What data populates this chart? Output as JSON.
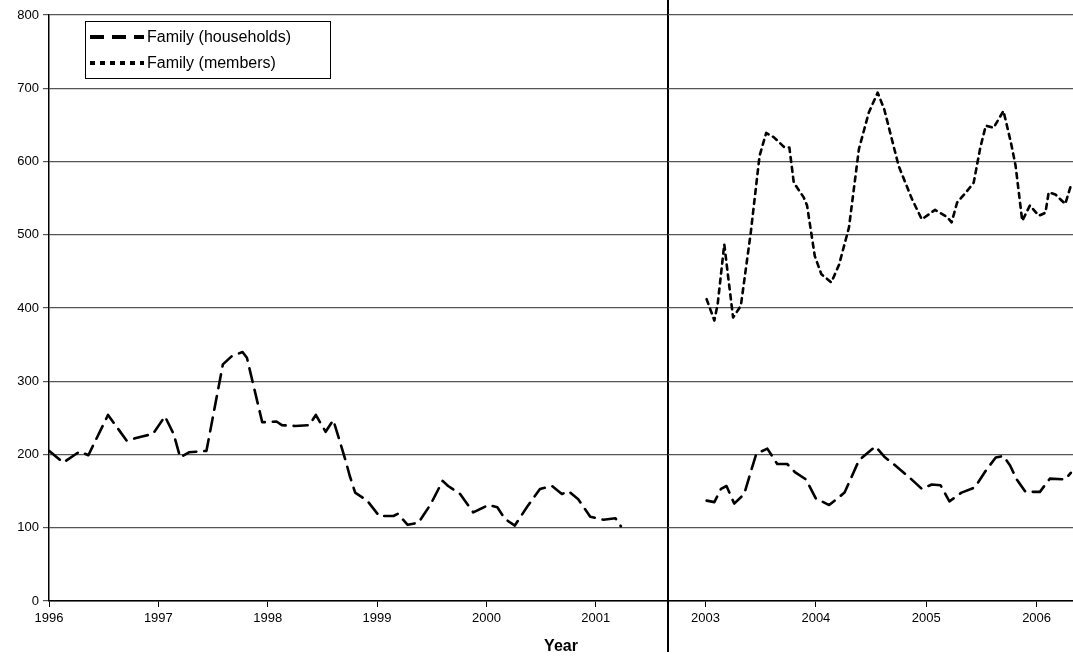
{
  "chart_data": [
    {
      "type": "line",
      "xlabel": "Year",
      "legend": "top left",
      "grid": "y",
      "marker": "none",
      "ref_lines": [
        {
          "axis": "x",
          "value": 2001.67,
          "color": "#000000"
        }
      ],
      "xlim": [
        1996,
        2001.67
      ],
      "xticks": [
        1996,
        1997,
        1998,
        1999,
        2000,
        2001
      ],
      "ylim": [
        0,
        800
      ],
      "yticks": [
        0,
        100,
        200,
        300,
        400,
        500,
        600,
        700,
        800
      ],
      "series": [
        {
          "name": "Family (households)",
          "color": "#000000",
          "line_style": "dashed",
          "x": [
            1996.0,
            1996.13,
            1996.28,
            1996.36,
            1996.54,
            1996.71,
            1996.86,
            1996.95,
            1997.06,
            1997.14,
            1997.2,
            1997.28,
            1997.44,
            1997.59,
            1997.67,
            1997.77,
            1997.81,
            1997.95,
            1998.08,
            1998.13,
            1998.25,
            1998.38,
            1998.44,
            1998.53,
            1998.6,
            1998.71,
            1998.75,
            1998.8,
            1998.91,
            1999.02,
            1999.15,
            1999.19,
            1999.28,
            1999.38,
            1999.49,
            1999.6,
            1999.65,
            1999.76,
            1999.88,
            2000.02,
            2000.1,
            2000.17,
            2000.26,
            2000.37,
            2000.49,
            2000.6,
            2000.69,
            2000.75,
            2000.84,
            2000.95,
            2001.07,
            2001.18,
            2001.23
          ],
          "values": [
            205,
            189,
            204,
            199,
            254,
            219,
            225,
            228,
            252,
            228,
            196,
            203,
            205,
            323,
            334,
            340,
            332,
            244,
            245,
            240,
            239,
            240,
            254,
            231,
            247,
            193,
            171,
            148,
            137,
            116,
            116,
            119,
            104,
            107,
            132,
            164,
            157,
            146,
            121,
            131,
            128,
            112,
            103,
            128,
            153,
            157,
            146,
            150,
            139,
            115,
            111,
            113,
            102
          ]
        }
      ]
    },
    {
      "type": "line",
      "grid": "y",
      "legend": "top left",
      "marker": "none",
      "tick_labels": "x",
      "xlim": [
        2002.66,
        2006.33
      ],
      "xticks": [
        2003,
        2004,
        2005,
        2006
      ],
      "ylim": [
        0,
        800
      ],
      "yticks": [
        0,
        100,
        200,
        300,
        400,
        500,
        600,
        700,
        800
      ],
      "series": [
        {
          "color": "#000000",
          "line_style": "dashed",
          "x": [
            2003.01,
            2003.08,
            2003.14,
            2003.19,
            2003.26,
            2003.35,
            2003.46,
            2003.56,
            2003.65,
            2003.74,
            2003.81,
            2003.91,
            2004.0,
            2004.12,
            2004.26,
            2004.39,
            2004.54,
            2004.62,
            2004.72,
            2004.86,
            2004.96,
            2005.05,
            2005.13,
            2005.21,
            2005.32,
            2005.44,
            2005.54,
            2005.63,
            2005.7,
            2005.76,
            2005.82,
            2005.9,
            2006.03,
            2006.12,
            2006.26,
            2006.31
          ],
          "values": [
            137,
            135,
            153,
            157,
            133,
            146,
            201,
            208,
            187,
            187,
            176,
            166,
            140,
            131,
            148,
            192,
            211,
            197,
            185,
            167,
            153,
            159,
            158,
            136,
            148,
            155,
            178,
            196,
            198,
            185,
            166,
            149,
            149,
            167,
            166,
            175
          ]
        },
        {
          "name": "Family (members)",
          "color": "#000000",
          "line_style": "dotted",
          "x": [
            2003.01,
            2003.08,
            2003.11,
            2003.17,
            2003.2,
            2003.25,
            2003.32,
            2003.41,
            2003.49,
            2003.55,
            2003.62,
            2003.71,
            2003.76,
            2003.8,
            2003.89,
            2003.92,
            2003.99,
            2004.05,
            2004.14,
            2004.21,
            2004.3,
            2004.39,
            2004.48,
            2004.56,
            2004.62,
            2004.75,
            2004.87,
            2004.96,
            2005.08,
            2005.19,
            2005.23,
            2005.28,
            2005.35,
            2005.43,
            2005.49,
            2005.54,
            2005.61,
            2005.7,
            2005.77,
            2005.81,
            2005.87,
            2005.94,
            2006.02,
            2006.08,
            2006.11,
            2006.17,
            2006.26,
            2006.31
          ],
          "values": [
            412,
            383,
            405,
            487,
            449,
            387,
            403,
            503,
            608,
            639,
            633,
            620,
            619,
            571,
            551,
            540,
            471,
            446,
            435,
            459,
            510,
            617,
            667,
            694,
            671,
            594,
            549,
            521,
            534,
            524,
            517,
            544,
            556,
            571,
            619,
            649,
            646,
            669,
            624,
            594,
            519,
            540,
            526,
            530,
            558,
            555,
            542,
            567
          ]
        }
      ]
    }
  ]
}
